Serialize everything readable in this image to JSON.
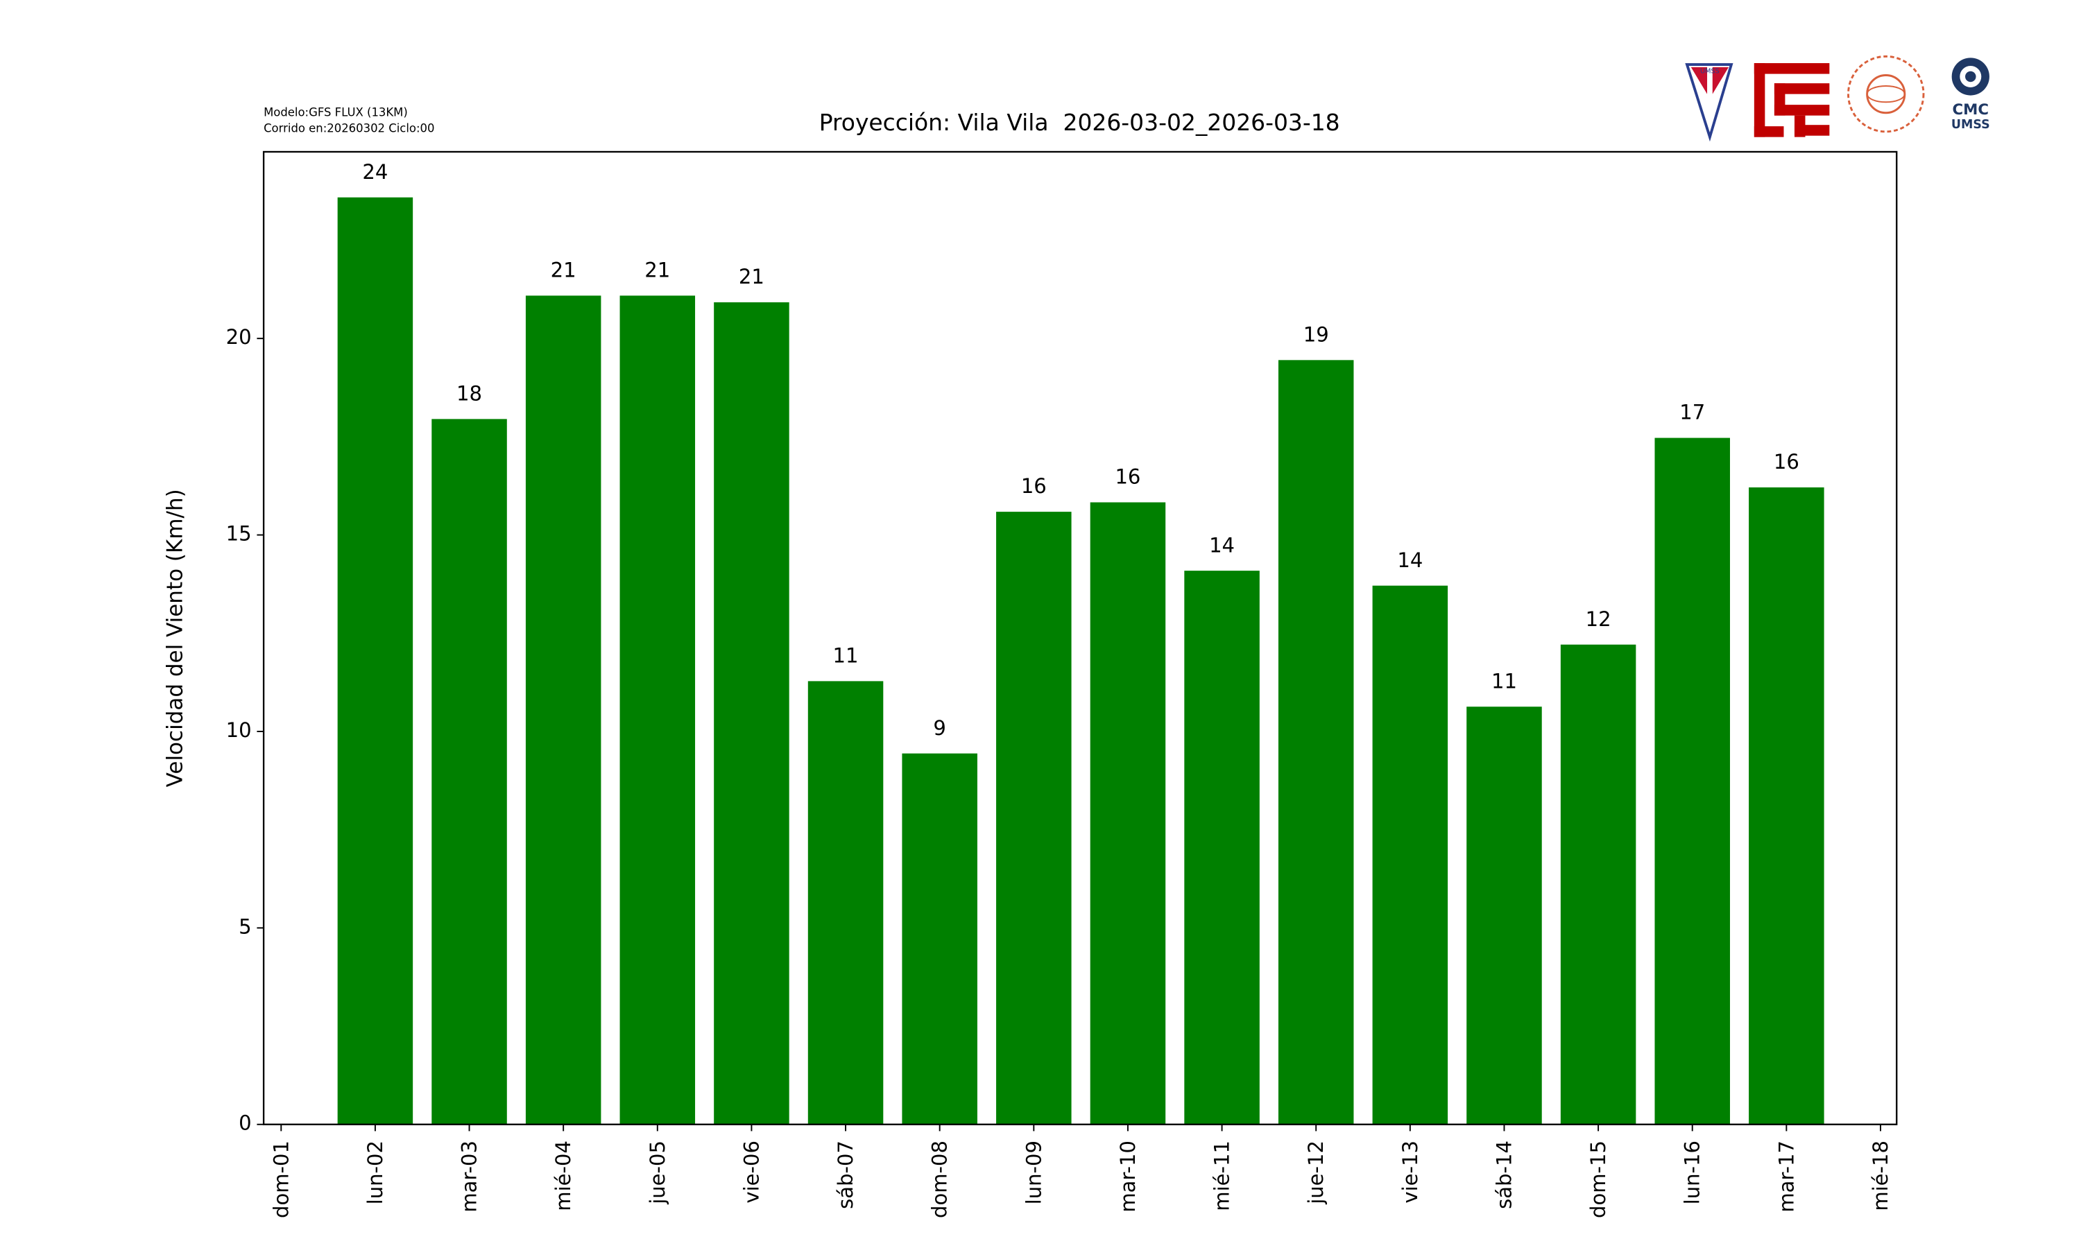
{
  "chart_data": {
    "type": "bar",
    "title": "Proyección: Vila Vila  2026-03-02_2026-03-18",
    "subtitle_lines": [
      "Modelo:GFS FLUX (13KM)",
      "Corrido en:20260302 Ciclo:00"
    ],
    "y_label": "Velocidad del Viento (Km/h)",
    "categories": [
      "dom-01",
      "lun-02",
      "mar-03",
      "mié-04",
      "jue-05",
      "vie-06",
      "sáb-07",
      "dom-08",
      "lun-09",
      "mar-10",
      "mié-11",
      "jue-12",
      "vie-13",
      "sáb-14",
      "dom-15",
      "lun-16",
      "mar-17",
      "mié-18"
    ],
    "values": [
      null,
      23.59,
      17.95,
      21.09,
      21.09,
      20.92,
      11.28,
      9.44,
      15.59,
      15.83,
      14.09,
      19.45,
      13.71,
      10.63,
      12.21,
      17.47,
      16.21,
      null
    ],
    "value_labels": [
      null,
      "24",
      "18",
      "21",
      "21",
      "21",
      "11",
      "9",
      "16",
      "16",
      "14",
      "19",
      "14",
      "11",
      "12",
      "17",
      "16",
      null
    ],
    "color": "#008000",
    "ylim": [
      0,
      24.75
    ],
    "yticks": [
      0,
      5,
      10,
      15,
      20
    ],
    "grid": false
  },
  "logos": {
    "umss_small": "UMSS",
    "cmc": "CMC",
    "cmc_sub": "UMSS"
  }
}
